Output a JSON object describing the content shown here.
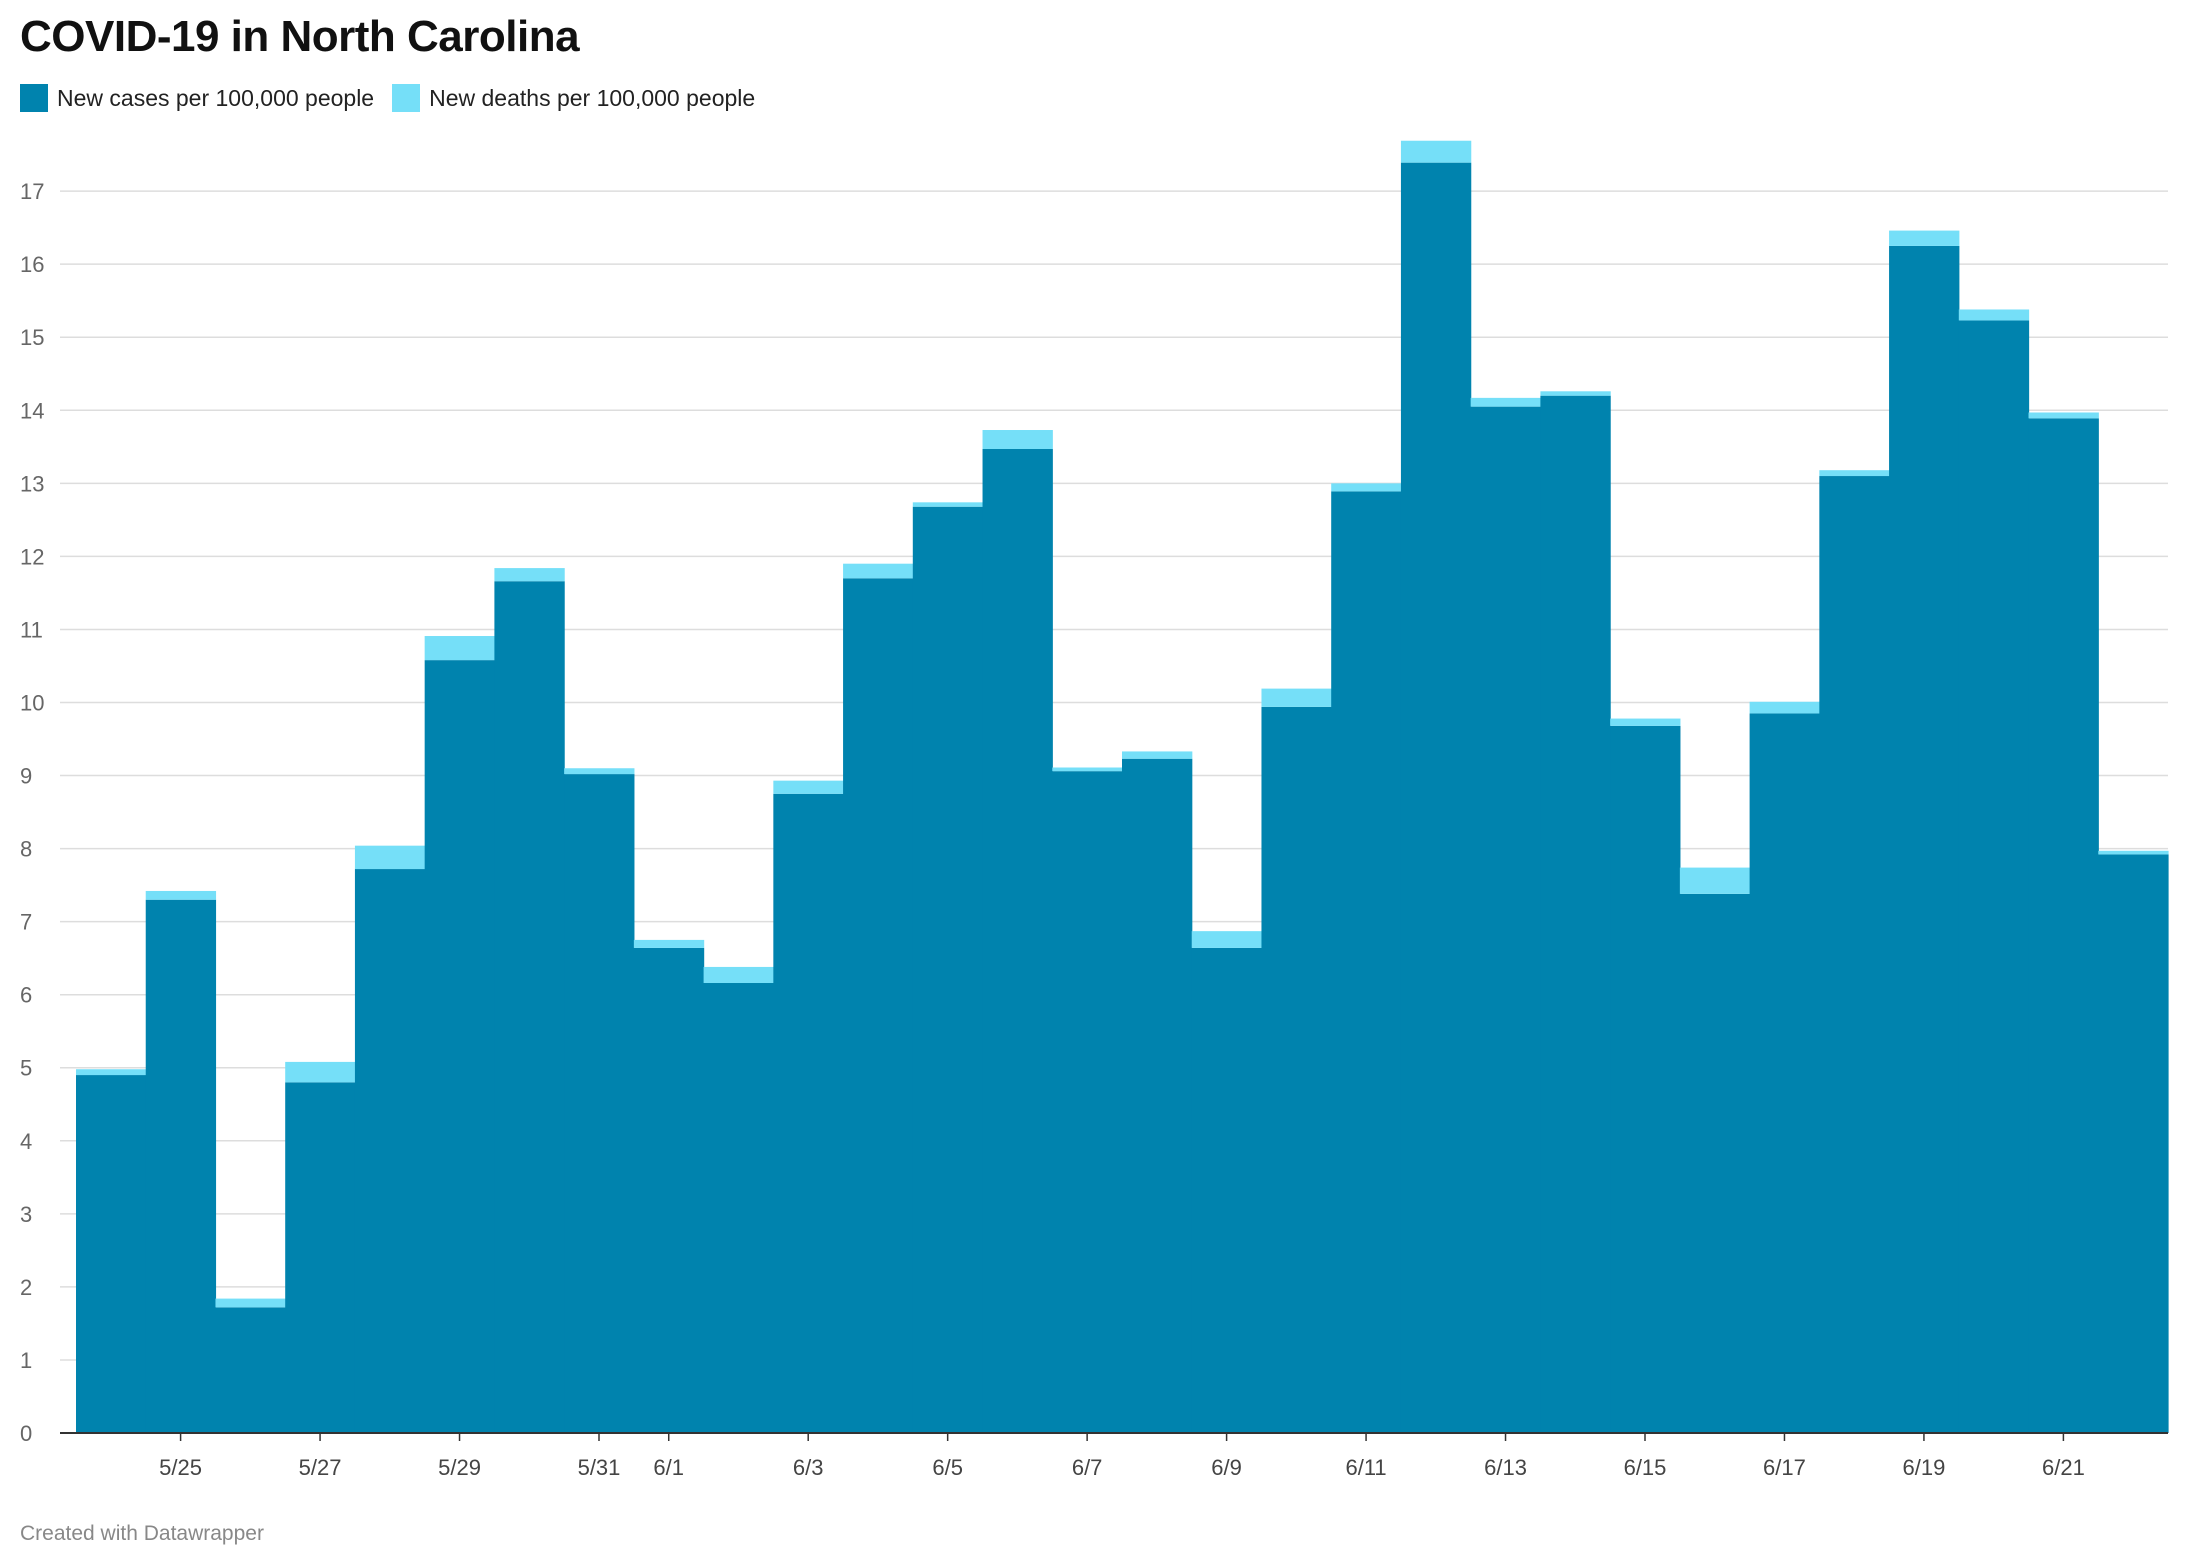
{
  "title": "COVID-19 in North Carolina",
  "footer": "Created with Datawrapper",
  "colors": {
    "cases": "#0083ae",
    "deaths": "#75dff8",
    "grid": "#dddddd",
    "axis": "#333333"
  },
  "legend": [
    {
      "label": "New cases per 100,000 people",
      "color": "#0083ae"
    },
    {
      "label": "New deaths per 100,000 people",
      "color": "#75dff8"
    }
  ],
  "chart_data": {
    "type": "area",
    "stacked": true,
    "step": true,
    "title": "COVID-19 in North Carolina",
    "xlabel": "",
    "ylabel": "",
    "ylim": [
      0,
      17.7
    ],
    "yticks": [
      0,
      1,
      2,
      3,
      4,
      5,
      6,
      7,
      8,
      9,
      10,
      11,
      12,
      13,
      14,
      15,
      16,
      17
    ],
    "grid": true,
    "legend_position": "top-left",
    "x": [
      "5/24",
      "5/25",
      "5/26",
      "5/27",
      "5/28",
      "5/29",
      "5/30",
      "5/31",
      "6/1",
      "6/2",
      "6/3",
      "6/4",
      "6/5",
      "6/6",
      "6/7",
      "6/8",
      "6/9",
      "6/10",
      "6/11",
      "6/12",
      "6/13",
      "6/14",
      "6/15",
      "6/16",
      "6/17",
      "6/18",
      "6/19",
      "6/20",
      "6/21",
      "6/22"
    ],
    "xtick_labels": [
      "5/25",
      "5/27",
      "5/29",
      "5/31",
      "6/1",
      "6/3",
      "6/5",
      "6/7",
      "6/9",
      "6/11",
      "6/13",
      "6/15",
      "6/17",
      "6/19",
      "6/21"
    ],
    "series": [
      {
        "name": "New cases per 100,000 people",
        "values": [
          4.9,
          7.3,
          1.72,
          4.8,
          7.72,
          10.58,
          11.66,
          9.02,
          6.64,
          6.16,
          8.75,
          11.7,
          12.68,
          13.47,
          9.06,
          9.23,
          6.64,
          9.94,
          12.89,
          17.39,
          14.05,
          14.2,
          9.68,
          7.38,
          9.85,
          13.1,
          16.25,
          15.23,
          13.89,
          7.92
        ]
      },
      {
        "name": "New deaths per 100,000 people",
        "values": [
          0.08,
          0.12,
          0.12,
          0.28,
          0.32,
          0.33,
          0.18,
          0.08,
          0.11,
          0.22,
          0.18,
          0.2,
          0.06,
          0.26,
          0.05,
          0.1,
          0.23,
          0.25,
          0.11,
          0.3,
          0.12,
          0.06,
          0.1,
          0.36,
          0.16,
          0.08,
          0.21,
          0.15,
          0.08,
          0.05
        ]
      }
    ]
  }
}
